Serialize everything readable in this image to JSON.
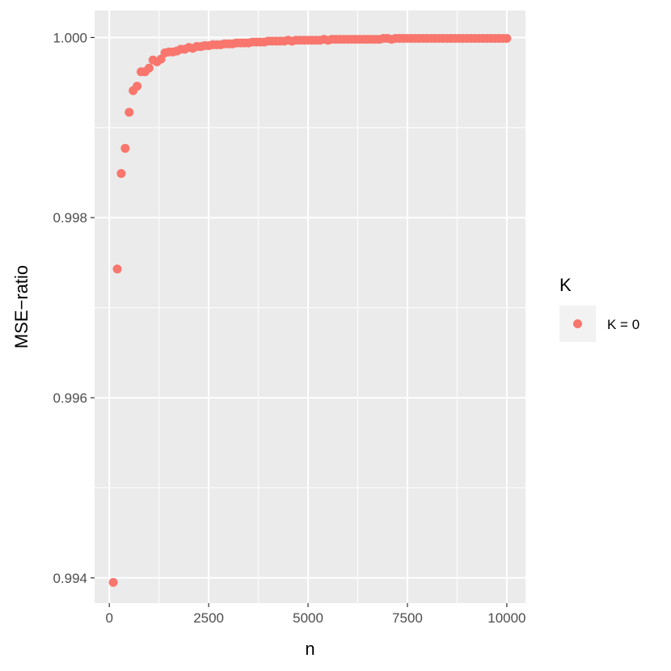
{
  "chart_data": {
    "type": "scatter",
    "xlabel": "n",
    "ylabel": "MSE−ratio",
    "xlim": [
      -370,
      10470
    ],
    "ylim": [
      0.99372,
      1.0003
    ],
    "x_ticks": [
      0,
      2500,
      5000,
      7500,
      10000
    ],
    "x_tick_labels": [
      "0",
      "2500",
      "5000",
      "7500",
      "10000"
    ],
    "y_ticks": [
      0.994,
      0.996,
      0.998,
      1.0
    ],
    "y_tick_labels": [
      "0.994",
      "0.996",
      "0.998",
      "1.000"
    ],
    "grid": true,
    "legend": {
      "title": "K",
      "placement": "right",
      "entries": [
        {
          "label": "K = 0",
          "color": "#F8766D"
        }
      ]
    },
    "colors": {
      "panel": "#EBEBEB",
      "grid": "#FFFFFF",
      "point": "#F8766D"
    },
    "series": [
      {
        "name": "K = 0",
        "x": [
          100,
          200,
          300,
          400,
          500,
          600,
          700,
          800,
          900,
          1000,
          1100,
          1200,
          1300,
          1400,
          1500,
          1600,
          1700,
          1800,
          1900,
          2000,
          2100,
          2200,
          2300,
          2400,
          2500,
          2600,
          2700,
          2800,
          2900,
          3000,
          3100,
          3200,
          3300,
          3400,
          3500,
          3600,
          3700,
          3800,
          3900,
          4000,
          4100,
          4200,
          4300,
          4400,
          4500,
          4600,
          4700,
          4800,
          4900,
          5000,
          5100,
          5200,
          5300,
          5400,
          5500,
          5600,
          5700,
          5800,
          5900,
          6000,
          6100,
          6200,
          6300,
          6400,
          6500,
          6600,
          6700,
          6800,
          6900,
          7000,
          7100,
          7200,
          7300,
          7400,
          7500,
          7600,
          7700,
          7800,
          7900,
          8000,
          8100,
          8200,
          8300,
          8400,
          8500,
          8600,
          8700,
          8800,
          8900,
          9000,
          9100,
          9200,
          9300,
          9400,
          9500,
          9600,
          9700,
          9800,
          9900,
          10000
        ],
        "y": [
          0.99395,
          0.99743,
          0.99849,
          0.99877,
          0.99917,
          0.99941,
          0.99946,
          0.99962,
          0.99962,
          0.99966,
          0.99975,
          0.99973,
          0.99976,
          0.99983,
          0.99984,
          0.99984,
          0.99985,
          0.99987,
          0.99987,
          0.99989,
          0.99988,
          0.9999,
          0.9999,
          0.99991,
          0.99991,
          0.99992,
          0.99992,
          0.99992,
          0.99993,
          0.99993,
          0.99993,
          0.99994,
          0.99994,
          0.99994,
          0.99994,
          0.99995,
          0.99995,
          0.99995,
          0.99995,
          0.99996,
          0.99996,
          0.99996,
          0.99996,
          0.99996,
          0.99997,
          0.99996,
          0.99997,
          0.99997,
          0.99997,
          0.99997,
          0.99997,
          0.99997,
          0.99997,
          0.99998,
          0.99997,
          0.99998,
          0.99998,
          0.99998,
          0.99998,
          0.99998,
          0.99998,
          0.99998,
          0.99998,
          0.99998,
          0.99998,
          0.99998,
          0.99998,
          0.99998,
          0.99999,
          0.99999,
          0.99998,
          0.99999,
          0.99999,
          0.99999,
          0.99999,
          0.99999,
          0.99999,
          0.99999,
          0.99999,
          0.99999,
          0.99999,
          0.99999,
          0.99999,
          0.99999,
          0.99999,
          0.99999,
          0.99999,
          0.99999,
          0.99999,
          0.99999,
          0.99999,
          0.99999,
          0.99999,
          0.99999,
          0.99999,
          0.99999,
          0.99999,
          0.99999,
          0.99999,
          0.99999
        ]
      }
    ]
  }
}
